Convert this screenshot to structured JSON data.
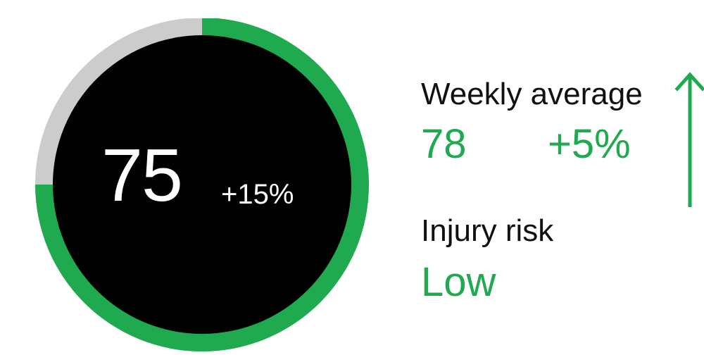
{
  "score": {
    "value": "75",
    "change": "+15%",
    "progress": 0.75
  },
  "weekly_average": {
    "label": "Weekly average",
    "value": "78",
    "change": "+5%",
    "trend": "up-arrow-icon"
  },
  "injury_risk": {
    "label": "Injury risk",
    "value": "Low"
  },
  "colors": {
    "accent": "#1faa4f",
    "track": "#cccccc",
    "core": "#000000",
    "text": "#111111"
  }
}
